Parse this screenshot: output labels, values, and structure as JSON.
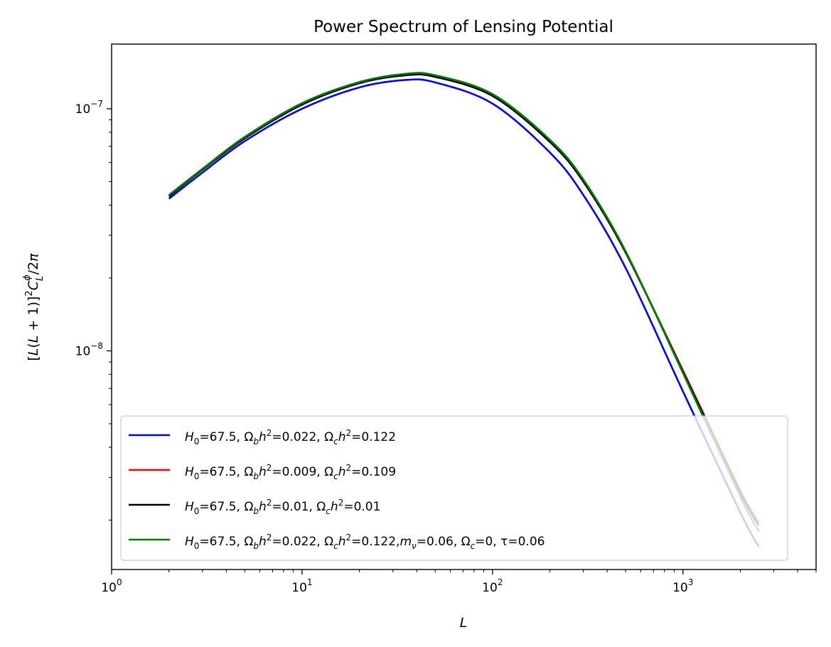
{
  "chart_data": {
    "type": "line",
    "title": "Power Spectrum of Lensing Potential",
    "xlabel": "L",
    "ylabel": "[L(L + 1)]²C_L^φ/2π",
    "xscale": "log",
    "yscale": "log",
    "xlim": [
      1,
      5000
    ],
    "ylim": [
      1.25e-09,
      1.85e-07
    ],
    "x_ticks": [
      {
        "value": 1,
        "base": "10",
        "exp": "0"
      },
      {
        "value": 10,
        "base": "10",
        "exp": "1"
      },
      {
        "value": 100,
        "base": "10",
        "exp": "2"
      },
      {
        "value": 1000,
        "base": "10",
        "exp": "3"
      }
    ],
    "y_ticks": [
      {
        "value": 1e-08,
        "base": "10",
        "exp": "−8"
      },
      {
        "value": 1e-07,
        "base": "10",
        "exp": "−7"
      }
    ],
    "grid": false,
    "legend_position": "lower-left",
    "x": [
      2,
      3,
      5,
      10,
      20,
      35,
      50,
      100,
      200,
      300,
      500,
      1000,
      2000,
      2500
    ],
    "series": [
      {
        "name": "H_0=67.5, Ω_b h²=0.022, Ω_c h²=0.122",
        "color": "#0000ff",
        "values": [
          4.25e-08,
          5.45e-08,
          7.35e-08,
          1e-07,
          1.225e-07,
          1.315e-07,
          1.285e-07,
          1.05e-07,
          6.6e-08,
          4.4e-08,
          2.2e-08,
          6.8e-09,
          2.15e-09,
          1.55e-09
        ]
      },
      {
        "name": "H_0=67.5, Ω_b h²=0.009, Ω_c h²=0.109",
        "color": "#ff0000",
        "values": [
          4.35e-08,
          5.6e-08,
          7.55e-08,
          1.04e-07,
          1.275e-07,
          1.375e-07,
          1.355e-07,
          1.13e-07,
          7.3e-08,
          5e-08,
          2.55e-08,
          8.3e-09,
          2.65e-09,
          1.95e-09
        ]
      },
      {
        "name": "H_0=67.5, Ω_b h²=0.01, Ω_c h²=0.01",
        "color": "#000000",
        "values": [
          4.35e-08,
          5.6e-08,
          7.55e-08,
          1.04e-07,
          1.275e-07,
          1.375e-07,
          1.355e-07,
          1.13e-07,
          7.3e-08,
          5e-08,
          2.55e-08,
          8.2e-09,
          2.6e-09,
          1.9e-09
        ]
      },
      {
        "name": "H_0=67.5, Ω_b h²=0.022, Ω_c h²=0.122,m_ν=0.06, Ω_c=0, τ=0.06",
        "color": "#008000",
        "values": [
          4.4e-08,
          5.65e-08,
          7.65e-08,
          1.055e-07,
          1.29e-07,
          1.395e-07,
          1.375e-07,
          1.15e-07,
          7.45e-08,
          5.1e-08,
          2.58e-08,
          8.1e-09,
          2.5e-09,
          1.8e-09
        ]
      }
    ]
  }
}
